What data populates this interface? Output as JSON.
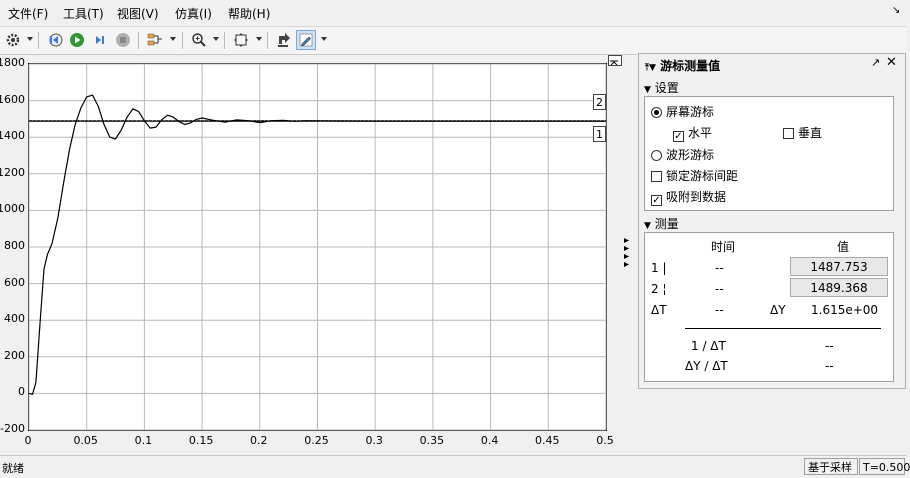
{
  "menu": [
    "文件(F)",
    "工具(T)",
    "视图(V)",
    "仿真(I)",
    "帮助(H)"
  ],
  "menu_pin": "↘",
  "toolbar_icons": [
    "settings-icon",
    "step-back-icon",
    "run-icon",
    "step-forward-icon",
    "stop-icon",
    "signal-select-icon",
    "zoom-icon",
    "fit-icon",
    "highlight-icon",
    "cursor-measure-icon"
  ],
  "chart_data": {
    "type": "line",
    "xlim": [
      0,
      0.5
    ],
    "ylim": [
      -200,
      1800
    ],
    "x_ticks": [
      "0",
      "0.05",
      "0.1",
      "0.15",
      "0.2",
      "0.25",
      "0.3",
      "0.35",
      "0.4",
      "0.45",
      "0.5"
    ],
    "y_ticks": [
      "1800",
      "1600",
      "1400",
      "1200",
      "1000",
      "800",
      "600",
      "400",
      "200",
      "0",
      "-200"
    ],
    "grid": true,
    "series": [
      {
        "color": "#000000",
        "x": [
          0,
          0.003,
          0.006,
          0.01,
          0.013,
          0.016,
          0.02,
          0.025,
          0.03,
          0.035,
          0.04,
          0.045,
          0.05,
          0.055,
          0.06,
          0.065,
          0.07,
          0.075,
          0.08,
          0.085,
          0.09,
          0.095,
          0.1,
          0.105,
          0.11,
          0.115,
          0.12,
          0.125,
          0.13,
          0.135,
          0.14,
          0.145,
          0.15,
          0.16,
          0.17,
          0.18,
          0.19,
          0.2,
          0.21,
          0.22,
          0.23,
          0.24,
          0.25,
          0.3,
          0.35,
          0.4,
          0.45,
          0.5
        ],
        "y": [
          0,
          -5,
          60,
          420,
          680,
          760,
          820,
          960,
          1150,
          1330,
          1470,
          1560,
          1620,
          1630,
          1570,
          1470,
          1400,
          1390,
          1440,
          1510,
          1555,
          1540,
          1490,
          1450,
          1455,
          1495,
          1520,
          1510,
          1485,
          1470,
          1478,
          1497,
          1505,
          1492,
          1482,
          1495,
          1490,
          1480,
          1490,
          1492,
          1487,
          1490,
          1489,
          1488,
          1488,
          1488,
          1488,
          1488
        ]
      }
    ],
    "cursors": [
      {
        "label": "1",
        "value": 1487.753
      },
      {
        "label": "2",
        "value": 1489.368
      }
    ]
  },
  "panel": {
    "title": "游标测量值",
    "settings_header": "设置",
    "screen_cursor": "屏幕游标",
    "horizontal": "水平",
    "vertical": "垂直",
    "wave_cursor": "波形游标",
    "lock_spacing": "锁定游标间距",
    "snap_to_data": "吸附到数据",
    "measure_header": "测量",
    "col_time": "时间",
    "col_value": "值",
    "row1_label": "1 |",
    "row1_time": "--",
    "row1_value": "1487.753",
    "row2_label": "2 ¦",
    "row2_time": "--",
    "row2_value": "1489.368",
    "dT_label": "ΔT",
    "dT_value": "--",
    "dY_label": "ΔY",
    "dY_value": "1.615e+00",
    "inv_dT_label": "1 / ΔT",
    "inv_dT_value": "--",
    "dY_dT_label": "ΔY / ΔT",
    "dY_dT_value": "--"
  },
  "status": {
    "left": "就绪",
    "sample": "基于采样",
    "time": "T=0.500"
  }
}
